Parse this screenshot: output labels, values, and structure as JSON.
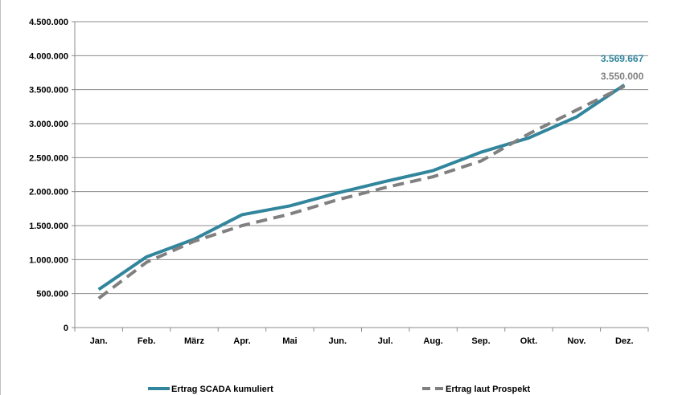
{
  "chart_data": {
    "type": "line",
    "categories": [
      "Jan.",
      "Feb.",
      "März",
      "Apr.",
      "Mai",
      "Jun.",
      "Jul.",
      "Aug.",
      "Sep.",
      "Okt.",
      "Nov.",
      "Dez."
    ],
    "ylim": [
      0,
      4500000
    ],
    "y_ticks": [
      "0",
      "500.000",
      "1.000.000",
      "1.500.000",
      "2.000.000",
      "2.500.000",
      "3.000.000",
      "3.500.000",
      "4.000.000",
      "4.500.000"
    ],
    "grid": true,
    "legend_position": "bottom",
    "series": [
      {
        "name": "Ertrag SCADA kumuliert",
        "color": "#31859c",
        "style": "solid",
        "values": [
          560000,
          1040000,
          1300000,
          1660000,
          1790000,
          1980000,
          2150000,
          2310000,
          2580000,
          2790000,
          3100000,
          3569667
        ]
      },
      {
        "name": "Ertrag laut Prospekt",
        "color": "#808080",
        "style": "dashed",
        "values": [
          430000,
          960000,
          1270000,
          1500000,
          1670000,
          1880000,
          2060000,
          2220000,
          2450000,
          2850000,
          3200000,
          3550000
        ]
      }
    ],
    "annotations": [
      {
        "text": "3.569.667",
        "series": 0,
        "color": "#31859c"
      },
      {
        "text": "3.550.000",
        "series": 1,
        "color": "#808080"
      }
    ]
  }
}
